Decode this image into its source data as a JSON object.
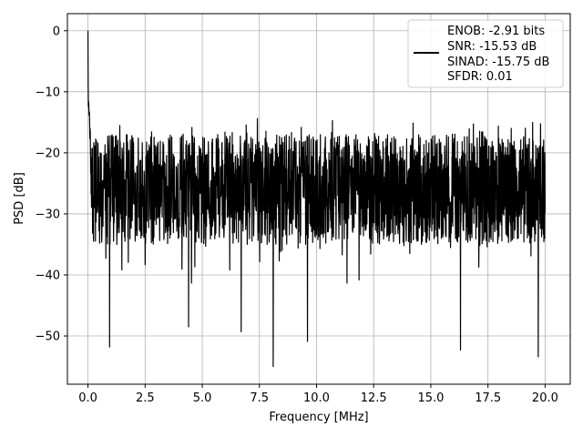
{
  "chart_data": {
    "type": "line",
    "xlabel": "Frequency [MHz]",
    "ylabel": "PSD [dB]",
    "xlim": [
      -0.9,
      21.1
    ],
    "ylim": [
      -57.9,
      2.8
    ],
    "x_ticks": [
      "0.0",
      "2.5",
      "5.0",
      "7.5",
      "10.0",
      "12.5",
      "15.0",
      "17.5",
      "20.0"
    ],
    "y_ticks": [
      "0",
      "−10",
      "−20",
      "−30",
      "−40",
      "−50"
    ],
    "grid": true,
    "legend_position": "top-right",
    "line_color": "#000000",
    "legend_lines": [
      "ENOB: -2.91 bits",
      "SNR: -15.53 dB",
      "SINAD: -15.75 dB",
      "SFDR: 0.01"
    ],
    "series": [
      {
        "description": "power spectral density, noise-like",
        "x_range": [
          0,
          20
        ],
        "peak": [
          0,
          0
        ],
        "typical_upper_envelope_db": -17,
        "typical_lower_envelope_db": -35,
        "mean_db": -25,
        "notable_minima": [
          [
            0.95,
            -51.8
          ],
          [
            4.4,
            -48.5
          ],
          [
            6.7,
            -49.3
          ],
          [
            8.1,
            -55.0
          ],
          [
            9.6,
            -50.9
          ],
          [
            16.3,
            -52.3
          ],
          [
            19.7,
            -53.4
          ]
        ]
      }
    ]
  }
}
